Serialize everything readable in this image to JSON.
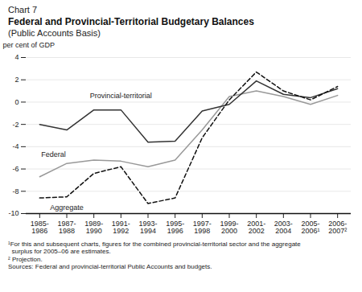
{
  "chart_data": {
    "type": "line",
    "heading": "Chart 7",
    "title": "Federal and Provincial-Territorial Budgetary Balances",
    "subtitle": "(Public Accounts Basis)",
    "ylabel": "per cent of GDP",
    "categories": [
      "1985-\n1986",
      "1987-\n1988",
      "1989-\n1990",
      "1991-\n1992",
      "1993-\n1994",
      "1995-\n1996",
      "1997-\n1998",
      "1999-\n2000",
      "2001-\n2002",
      "2003-\n2004",
      "2005-\n2006¹",
      "2006-\n2007²"
    ],
    "series": [
      {
        "name": "Federal",
        "color": "#999999",
        "line_style": "solid",
        "values": [
          -6.7,
          -5.5,
          -5.2,
          -5.3,
          -5.8,
          -5.2,
          -2.5,
          0.5,
          1.0,
          0.5,
          -0.2,
          0.6
        ]
      },
      {
        "name": "Provincial-territorial",
        "color": "#333333",
        "line_style": "solid",
        "values": [
          -2.0,
          -2.5,
          -0.7,
          -0.7,
          -3.6,
          -3.5,
          -0.8,
          -0.2,
          1.9,
          0.7,
          0.4,
          1.2
        ]
      },
      {
        "name": "Aggregate",
        "color": "#111111",
        "line_style": "dashed",
        "values": [
          -8.6,
          -8.5,
          -6.4,
          -5.8,
          -9.1,
          -8.6,
          -3.2,
          0.2,
          2.7,
          1.0,
          0.2,
          1.4
        ]
      }
    ],
    "ylim": [
      -10,
      4
    ],
    "yticks": [
      -10,
      -8,
      -6,
      -4,
      -2,
      0,
      2,
      4
    ],
    "grid": true,
    "notes": [
      "¹For this and subsequent charts, figures for the combined provincial-territorial sector and the aggregate\n  surplus for 2005–06 are estimates.",
      "² Projection.",
      "Sources: Federal and provincial-territorial Public Accounts and budgets."
    ]
  }
}
